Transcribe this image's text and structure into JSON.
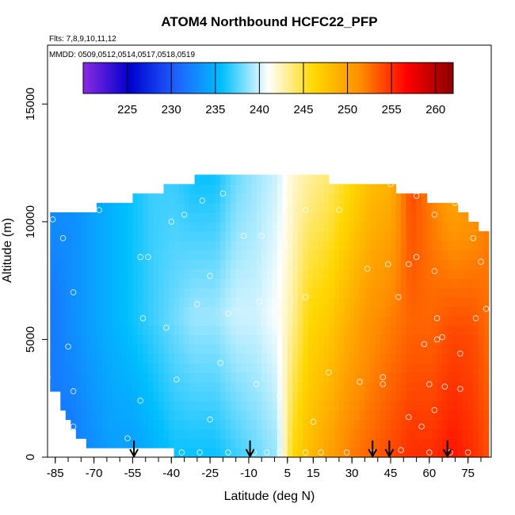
{
  "chart_data": {
    "type": "heatmap",
    "title": "ATOM4 Northbound HCFC22_PFP",
    "subtitle_flights": "Flts: 7,8,9,10,11,12",
    "subtitle_dates": "MMDD: 0509,0512,0514,0517,0518,0519",
    "xlabel": "Latitude (deg N)",
    "ylabel": "Altitude (m)",
    "xlim": [
      -88,
      84
    ],
    "ylim": [
      0,
      17500
    ],
    "x_ticks": [
      "-85",
      "-70",
      "-55",
      "-40",
      "-25",
      "-10",
      "5",
      "15",
      "30",
      "45",
      "60",
      "75"
    ],
    "y_ticks": [
      "0",
      "5000",
      "10000",
      "15000"
    ],
    "colorbar": {
      "range": [
        220,
        262
      ],
      "ticks": [
        "225",
        "230",
        "235",
        "240",
        "245",
        "250",
        "255",
        "260"
      ],
      "colors": [
        "#8a2be2",
        "#0000cd",
        "#1e60ff",
        "#00bfff",
        "#ffffff",
        "#ffd700",
        "#ff8c00",
        "#ff0000",
        "#8b0000"
      ]
    },
    "field_columns": [
      {
        "lat": -86,
        "bottom": 3000,
        "top": 10500,
        "values": [
          232,
          232,
          233
        ]
      },
      {
        "lat": -80,
        "bottom": 1200,
        "top": 10500,
        "values": [
          232,
          233,
          233
        ]
      },
      {
        "lat": -72,
        "bottom": 500,
        "top": 10500,
        "values": [
          233,
          234,
          234
        ]
      },
      {
        "lat": -64,
        "bottom": 400,
        "top": 10800,
        "values": [
          234,
          235,
          235
        ]
      },
      {
        "lat": -56,
        "bottom": 300,
        "top": 11000,
        "values": [
          234,
          236,
          236
        ]
      },
      {
        "lat": -48,
        "bottom": 250,
        "top": 11300,
        "values": [
          235,
          237,
          237
        ]
      },
      {
        "lat": -40,
        "bottom": 200,
        "top": 11500,
        "values": [
          236,
          238,
          237
        ]
      },
      {
        "lat": -32,
        "bottom": 200,
        "top": 11800,
        "values": [
          236,
          239,
          236
        ]
      },
      {
        "lat": -24,
        "bottom": 200,
        "top": 11900,
        "values": [
          236,
          239,
          236
        ]
      },
      {
        "lat": -16,
        "bottom": 200,
        "top": 11900,
        "values": [
          237,
          240,
          238
        ]
      },
      {
        "lat": -8,
        "bottom": 200,
        "top": 11900,
        "values": [
          238,
          240,
          239
        ]
      },
      {
        "lat": 0,
        "bottom": 200,
        "top": 11900,
        "values": [
          239,
          241,
          240
        ]
      },
      {
        "lat": 6,
        "bottom": 200,
        "top": 11900,
        "values": [
          246,
          243,
          242
        ]
      },
      {
        "lat": 12,
        "bottom": 200,
        "top": 11900,
        "values": [
          248,
          246,
          243
        ]
      },
      {
        "lat": 20,
        "bottom": 200,
        "top": 11800,
        "values": [
          250,
          247,
          244
        ]
      },
      {
        "lat": 28,
        "bottom": 200,
        "top": 11700,
        "values": [
          252,
          249,
          246
        ]
      },
      {
        "lat": 36,
        "bottom": 200,
        "top": 11600,
        "values": [
          253,
          251,
          248
        ]
      },
      {
        "lat": 44,
        "bottom": 200,
        "top": 11500,
        "values": [
          254,
          252,
          249
        ]
      },
      {
        "lat": 52,
        "bottom": 200,
        "top": 11200,
        "values": [
          255,
          253,
          254
        ]
      },
      {
        "lat": 60,
        "bottom": 200,
        "top": 10900,
        "values": [
          255,
          253,
          252
        ]
      },
      {
        "lat": 68,
        "bottom": 200,
        "top": 10700,
        "values": [
          256,
          254,
          250
        ]
      },
      {
        "lat": 76,
        "bottom": 200,
        "top": 10000,
        "values": [
          255,
          254,
          251
        ]
      },
      {
        "lat": 81,
        "bottom": 200,
        "top": 9600,
        "values": [
          254,
          253,
          252
        ]
      }
    ],
    "samples": [
      {
        "lat": -86,
        "alt": 10100
      },
      {
        "lat": -82,
        "alt": 9300
      },
      {
        "lat": -78,
        "alt": 7000
      },
      {
        "lat": -80,
        "alt": 4700
      },
      {
        "lat": -78,
        "alt": 2800
      },
      {
        "lat": -78,
        "alt": 1300
      },
      {
        "lat": -88,
        "alt": 3400
      },
      {
        "lat": -68,
        "alt": 10500
      },
      {
        "lat": -52,
        "alt": 8500
      },
      {
        "lat": -49,
        "alt": 8500
      },
      {
        "lat": -51,
        "alt": 5900
      },
      {
        "lat": -52,
        "alt": 2400
      },
      {
        "lat": -57,
        "alt": 800
      },
      {
        "lat": -56,
        "alt": 200
      },
      {
        "lat": -52,
        "alt": 200
      },
      {
        "lat": -47,
        "alt": 200
      },
      {
        "lat": -40,
        "alt": 10000
      },
      {
        "lat": -35,
        "alt": 10300
      },
      {
        "lat": -38,
        "alt": 3300
      },
      {
        "lat": -42,
        "alt": 5500
      },
      {
        "lat": -36,
        "alt": 200
      },
      {
        "lat": -30,
        "alt": 6500
      },
      {
        "lat": -25,
        "alt": 7700
      },
      {
        "lat": -25,
        "alt": 1600
      },
      {
        "lat": -28,
        "alt": 10900
      },
      {
        "lat": -20,
        "alt": 11200
      },
      {
        "lat": -21,
        "alt": 4000
      },
      {
        "lat": -18,
        "alt": 6100
      },
      {
        "lat": -18,
        "alt": 200
      },
      {
        "lat": -12,
        "alt": 9400
      },
      {
        "lat": -5,
        "alt": 9400
      },
      {
        "lat": -6,
        "alt": 6600
      },
      {
        "lat": -7,
        "alt": 3100
      },
      {
        "lat": -8,
        "alt": 200
      },
      {
        "lat": -3,
        "alt": 200
      },
      {
        "lat": 2,
        "alt": 2600
      },
      {
        "lat": 2,
        "alt": 200
      },
      {
        "lat": 5,
        "alt": 9000
      },
      {
        "lat": 12,
        "alt": 10500
      },
      {
        "lat": 12,
        "alt": 6800
      },
      {
        "lat": 12,
        "alt": 200
      },
      {
        "lat": 21,
        "alt": 3600
      },
      {
        "lat": 25,
        "alt": 10500
      },
      {
        "lat": 28,
        "alt": 200
      },
      {
        "lat": 33,
        "alt": 3200
      },
      {
        "lat": 36,
        "alt": 8000
      },
      {
        "lat": 42,
        "alt": 3400
      },
      {
        "lat": 42,
        "alt": 3100
      },
      {
        "lat": 44,
        "alt": 8200
      },
      {
        "lat": 45,
        "alt": 11600
      },
      {
        "lat": 48,
        "alt": 6800
      },
      {
        "lat": 52,
        "alt": 8200
      },
      {
        "lat": 52,
        "alt": 1700
      },
      {
        "lat": 55,
        "alt": 8500
      },
      {
        "lat": 55,
        "alt": 11100
      },
      {
        "lat": 58,
        "alt": 4800
      },
      {
        "lat": 60,
        "alt": 3100
      },
      {
        "lat": 62,
        "alt": 7900
      },
      {
        "lat": 62,
        "alt": 2000
      },
      {
        "lat": 63,
        "alt": 5900
      },
      {
        "lat": 63,
        "alt": 5000
      },
      {
        "lat": 62,
        "alt": 10300
      },
      {
        "lat": 65,
        "alt": 5100
      },
      {
        "lat": 66,
        "alt": 3000
      },
      {
        "lat": 70,
        "alt": 10800
      },
      {
        "lat": 72,
        "alt": 4400
      },
      {
        "lat": 72,
        "alt": 2900
      },
      {
        "lat": 77,
        "alt": 10800
      },
      {
        "lat": 77,
        "alt": 9300
      },
      {
        "lat": 78,
        "alt": 5900
      },
      {
        "lat": 80,
        "alt": 8300
      },
      {
        "lat": 82,
        "alt": 6300
      },
      {
        "lat": 57,
        "alt": 1300
      },
      {
        "lat": 49,
        "alt": 300
      },
      {
        "lat": 60,
        "alt": 200
      },
      {
        "lat": 68,
        "alt": 200
      },
      {
        "lat": 75,
        "alt": 200
      },
      {
        "lat": 38,
        "alt": 200
      },
      {
        "lat": 15,
        "alt": 1500
      },
      {
        "lat": 18,
        "alt": 200
      },
      {
        "lat": -29,
        "alt": 200
      },
      {
        "lat": -42,
        "alt": 200
      }
    ],
    "flight_arrows_lat": [
      -54.5,
      -9.5,
      38,
      44.5,
      67
    ]
  }
}
